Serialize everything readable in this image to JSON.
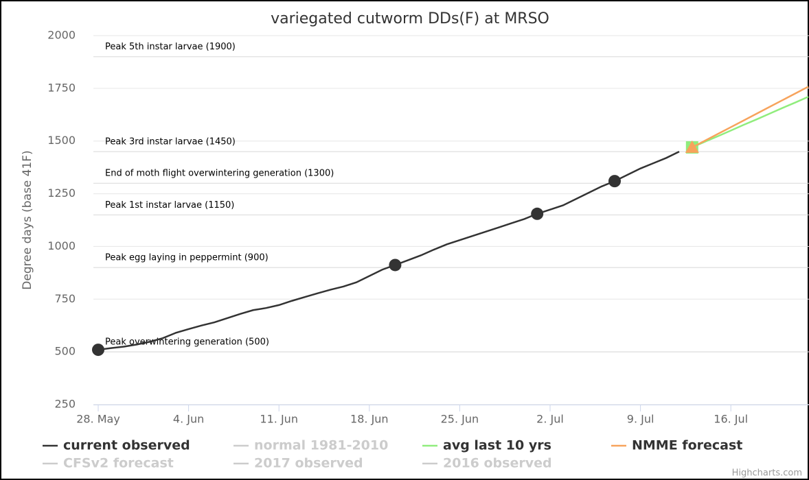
{
  "chart_data": {
    "type": "line",
    "title": "variegated cutworm DDs(F) at MRSO",
    "y_label": "Degree days (base 41F)",
    "credits": "Highcharts.com",
    "categories": [
      "28. May",
      null,
      null,
      null,
      null,
      null,
      null,
      "4. Jun",
      null,
      null,
      null,
      null,
      null,
      null,
      "11. Jun",
      null,
      null,
      null,
      null,
      null,
      null,
      "18. Jun",
      null,
      null,
      null,
      null,
      null,
      null,
      "25. Jun",
      null,
      null,
      null,
      null,
      null,
      null,
      "2. Jul",
      null,
      null,
      null,
      null,
      null,
      null,
      "9. Jul",
      null,
      null,
      null,
      null,
      null,
      null,
      "16. Jul",
      null,
      null,
      null,
      null,
      null,
      null
    ],
    "ylim": [
      250,
      2000
    ],
    "yticks": [
      250,
      500,
      750,
      1000,
      1250,
      1500,
      1750,
      2000
    ],
    "grid": true,
    "plot_lines": [
      {
        "value": 1900,
        "label": "Peak 5th instar larvae (1900)"
      },
      {
        "value": 1450,
        "label": "Peak 3rd instar larvae (1450)"
      },
      {
        "value": 1300,
        "label": "End of moth flight overwintering generation (1300)"
      },
      {
        "value": 1150,
        "label": "Peak 1st instar larvae (1150)"
      },
      {
        "value": 900,
        "label": "Peak egg laying in peppermint (900)"
      },
      {
        "value": 500,
        "label": "Peak overwintering generation (500)"
      }
    ],
    "series": [
      {
        "name": "current observed",
        "color": "#333333",
        "visible": true,
        "markers": [
          0,
          23,
          34,
          40
        ],
        "values": [
          510,
          518,
          525,
          535,
          548,
          565,
          590,
          608,
          625,
          640,
          660,
          680,
          698,
          708,
          722,
          742,
          760,
          778,
          795,
          810,
          830,
          860,
          890,
          912,
          935,
          958,
          985,
          1010,
          1030,
          1050,
          1070,
          1090,
          1110,
          1130,
          1155,
          1175,
          1195,
          1225,
          1255,
          1285,
          1310,
          1340,
          1370,
          1395,
          1420,
          1450,
          null,
          null,
          null,
          null,
          null,
          null,
          null,
          null,
          null,
          null
        ]
      },
      {
        "name": "normal 1981-2010",
        "color": "#cccccc",
        "visible": false
      },
      {
        "name": "avg last 10 yrs",
        "color": "#90ed7d",
        "visible": true,
        "marker": "square",
        "values": [
          null,
          null,
          null,
          null,
          null,
          null,
          null,
          null,
          null,
          null,
          null,
          null,
          null,
          null,
          null,
          null,
          null,
          null,
          null,
          null,
          null,
          null,
          null,
          null,
          null,
          null,
          null,
          null,
          null,
          null,
          null,
          null,
          null,
          null,
          null,
          null,
          null,
          null,
          null,
          null,
          null,
          null,
          null,
          null,
          null,
          null,
          1470,
          1497,
          1523,
          1550,
          1577,
          1603,
          1630,
          1657,
          1683,
          1710
        ]
      },
      {
        "name": "NMME forecast",
        "color": "#f7a35c",
        "visible": true,
        "marker": "triangle",
        "values": [
          null,
          null,
          null,
          null,
          null,
          null,
          null,
          null,
          null,
          null,
          null,
          null,
          null,
          null,
          null,
          null,
          null,
          null,
          null,
          null,
          null,
          null,
          null,
          null,
          null,
          null,
          null,
          null,
          null,
          null,
          null,
          null,
          null,
          null,
          null,
          null,
          null,
          null,
          null,
          null,
          null,
          null,
          null,
          null,
          null,
          null,
          1470,
          1502,
          1534,
          1566,
          1598,
          1630,
          1662,
          1694,
          1726,
          1758
        ]
      },
      {
        "name": "CFSv2 forecast",
        "color": "#cccccc",
        "visible": false
      },
      {
        "name": "2017 observed",
        "color": "#cccccc",
        "visible": false
      },
      {
        "name": "2016 observed",
        "color": "#cccccc",
        "visible": false
      }
    ]
  }
}
